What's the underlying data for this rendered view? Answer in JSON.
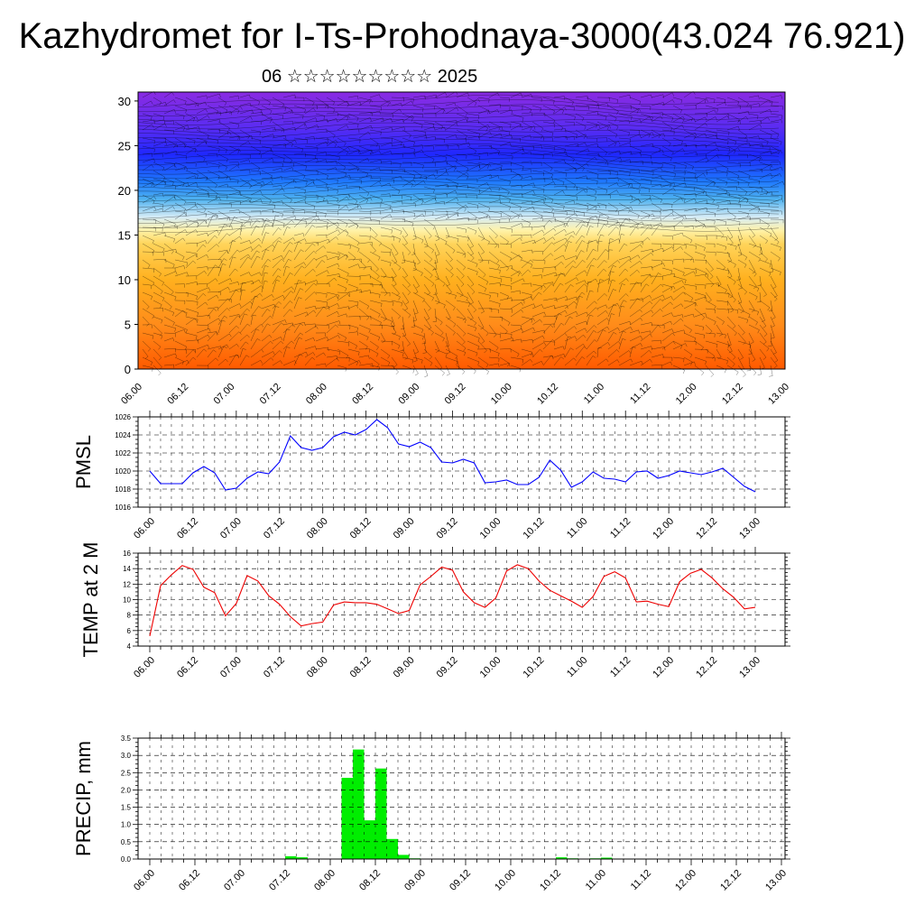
{
  "title": "Kazhydromet for I-Ts-Prohodnaya-3000(43.024 76.921)",
  "subtitle": "06 ☆☆☆☆☆☆☆☆☆ 2025",
  "chart_data": [
    {
      "type": "heatmap",
      "title": "",
      "ylabel": "",
      "ylim": [
        0,
        31
      ],
      "yticks": [
        0,
        5,
        10,
        15,
        20,
        25,
        30
      ],
      "xticks": [
        "06.00",
        "06.12",
        "07.00",
        "07.12",
        "08.00",
        "08.12",
        "09.00",
        "09.12",
        "10.00",
        "10.12",
        "11.00",
        "11.12",
        "12.00",
        "12.12",
        "13.00"
      ],
      "color_stops": [
        {
          "y": 0,
          "color": "#ff5a00"
        },
        {
          "y": 5,
          "color": "#ff8c1a"
        },
        {
          "y": 10,
          "color": "#ffb01e"
        },
        {
          "y": 14,
          "color": "#ffd45a"
        },
        {
          "y": 15.5,
          "color": "#fff2a8"
        },
        {
          "y": 17,
          "color": "#d6ecf6"
        },
        {
          "y": 19,
          "color": "#4fb2f0"
        },
        {
          "y": 21,
          "color": "#1e78ff"
        },
        {
          "y": 24,
          "color": "#1f28ff"
        },
        {
          "y": 27,
          "color": "#5a2cf2"
        },
        {
          "y": 31,
          "color": "#8a2be2"
        }
      ],
      "overlay": "wind barbs and contour lines"
    },
    {
      "type": "line",
      "ylabel": "PMSL",
      "ylim": [
        1016,
        1026
      ],
      "yticks": [
        1016,
        1018,
        1020,
        1022,
        1024,
        1026
      ],
      "xticks": [
        "06.00",
        "06.12",
        "07.00",
        "07.12",
        "08.00",
        "08.12",
        "09.00",
        "09.12",
        "10.00",
        "10.12",
        "11.00",
        "11.12",
        "12.00",
        "12.12",
        "13.00"
      ],
      "color": "#0000ff",
      "grid": true,
      "x_hours": [
        0,
        3,
        6,
        9,
        12,
        15,
        18,
        21,
        24,
        27,
        30,
        33,
        36,
        39,
        42,
        45,
        48,
        51,
        54,
        57,
        60,
        63,
        66,
        69,
        72,
        75,
        78,
        81,
        84,
        87,
        90,
        93,
        96,
        99,
        102,
        105,
        108,
        111,
        114,
        117,
        120,
        123,
        126,
        129,
        132,
        135,
        138,
        141,
        144,
        147,
        150,
        153,
        156,
        159,
        162,
        165,
        168
      ],
      "values": [
        1020.0,
        1018.6,
        1018.6,
        1018.6,
        1019.8,
        1020.5,
        1019.8,
        1017.9,
        1018.1,
        1019.2,
        1019.9,
        1019.7,
        1021.0,
        1023.9,
        1022.6,
        1022.3,
        1022.6,
        1023.8,
        1024.3,
        1024.0,
        1024.6,
        1025.7,
        1024.8,
        1023.0,
        1022.7,
        1023.2,
        1022.6,
        1021.0,
        1020.9,
        1021.3,
        1020.9,
        1018.7,
        1018.8,
        1019.0,
        1018.5,
        1018.5,
        1019.3,
        1021.2,
        1020.1,
        1018.2,
        1018.8,
        1019.9,
        1019.2,
        1019.1,
        1018.8,
        1019.9,
        1020.0,
        1019.2,
        1019.5,
        1020.0,
        1019.8,
        1019.6,
        1019.9,
        1020.3,
        1019.3,
        1018.3,
        1017.7
      ]
    },
    {
      "type": "line",
      "ylabel": "TEMP at 2 M",
      "ylim": [
        4,
        16
      ],
      "yticks": [
        4,
        6,
        8,
        10,
        12,
        14,
        16
      ],
      "xticks": [
        "06.00",
        "06.12",
        "07.00",
        "07.12",
        "08.00",
        "08.12",
        "09.00",
        "09.12",
        "10.00",
        "10.12",
        "11.00",
        "11.12",
        "12.00",
        "12.12",
        "13.00"
      ],
      "color": "#ee0000",
      "grid": true,
      "x_hours": [
        0,
        3,
        6,
        9,
        12,
        15,
        18,
        21,
        24,
        27,
        30,
        33,
        36,
        39,
        42,
        45,
        48,
        51,
        54,
        57,
        60,
        63,
        66,
        69,
        72,
        75,
        78,
        81,
        84,
        87,
        90,
        93,
        96,
        99,
        102,
        105,
        108,
        111,
        114,
        117,
        120,
        123,
        126,
        129,
        132,
        135,
        138,
        141,
        144,
        147,
        150,
        153,
        156,
        159,
        162,
        165,
        168
      ],
      "values": [
        5.3,
        11.8,
        13.2,
        14.4,
        13.9,
        11.6,
        10.9,
        7.9,
        9.5,
        13.1,
        12.4,
        10.5,
        9.4,
        7.8,
        6.6,
        6.9,
        7.1,
        9.3,
        9.7,
        9.6,
        9.6,
        9.4,
        8.8,
        8.2,
        8.6,
        11.9,
        13.0,
        14.2,
        13.8,
        11.0,
        9.6,
        9.0,
        10.2,
        13.7,
        14.5,
        14.0,
        12.4,
        11.2,
        10.5,
        9.8,
        9.0,
        10.4,
        13.0,
        13.6,
        12.8,
        9.7,
        9.8,
        9.4,
        9.1,
        12.3,
        13.4,
        13.9,
        12.8,
        11.4,
        10.3,
        8.8,
        9.0
      ]
    },
    {
      "type": "bar",
      "ylabel": "PRECIP, mm",
      "ylim": [
        0,
        3.5
      ],
      "yticks": [
        "0.0",
        "0.5",
        "1.0",
        "1.5",
        "2.0",
        "2.5",
        "3.0",
        "3.5"
      ],
      "xticks": [
        "06.00",
        "06.12",
        "07.00",
        "07.12",
        "08.00",
        "08.12",
        "09.00",
        "09.12",
        "10.00",
        "10.12",
        "11.00",
        "11.12",
        "12.00",
        "12.12",
        "13.00"
      ],
      "color": "#00ee00",
      "grid": true,
      "bar_start_hours": [
        36,
        39,
        51,
        54,
        57,
        60,
        63,
        66,
        69,
        108,
        111,
        117,
        120
      ],
      "values": [
        0.08,
        0.05,
        2.35,
        3.17,
        1.12,
        2.62,
        0.58,
        0.12,
        0.02,
        0.05,
        0.02,
        0.02,
        0.04
      ]
    }
  ]
}
